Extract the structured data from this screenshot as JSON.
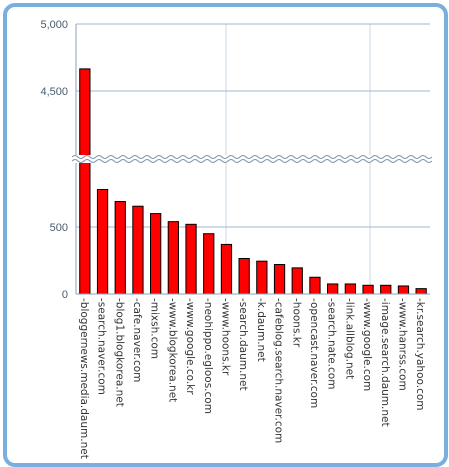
{
  "chart_data": {
    "type": "bar",
    "title": "",
    "xlabel": "",
    "ylabel": "",
    "axis_break": true,
    "y_ticks_lower": [
      "0",
      "500"
    ],
    "y_ticks_upper": [
      "4,500",
      "5,000"
    ],
    "lower_range": [
      0,
      1000
    ],
    "upper_range": [
      4000,
      5000
    ],
    "grid": true,
    "bar_color": "#ff0000",
    "categories": [
      "bloggernews.media.daum.net",
      "search.naver.com",
      "blog1.blogkorea.net",
      "cafe.naver.com",
      "mixsh.com",
      "www.blogkorea.net",
      "www.google.co.kr",
      "neohippo.egloos.com",
      "www.hoons.kr",
      "search.daum.net",
      "k.daum.net",
      "cafeblog.search.naver.com",
      "hoons.kr",
      "opencast.naver.com",
      "search.nate.com",
      "link.allblog.net",
      "www.google.com",
      "image.search.daum.net",
      "www.hanrss.com",
      "kr.search.yahoo.com"
    ],
    "values": [
      4665,
      780,
      690,
      655,
      600,
      540,
      520,
      450,
      370,
      265,
      245,
      220,
      195,
      125,
      75,
      75,
      65,
      65,
      60,
      40
    ]
  }
}
